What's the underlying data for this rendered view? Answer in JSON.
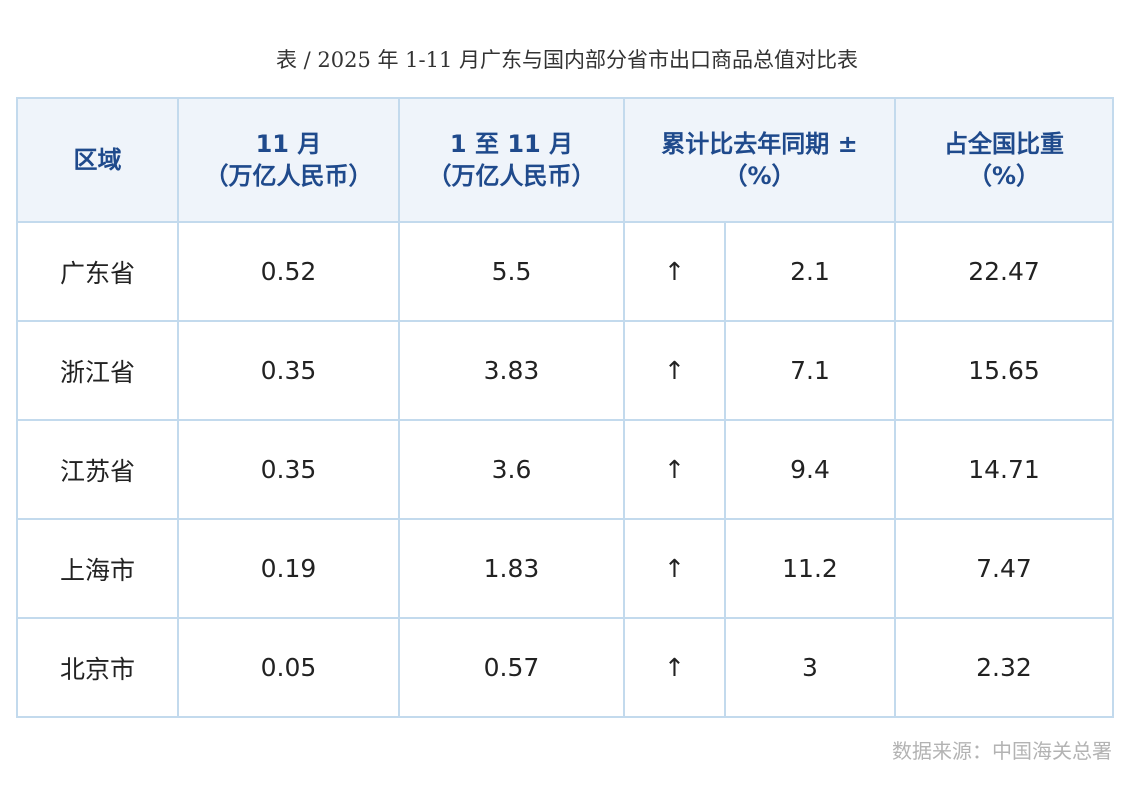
{
  "title": "表 / 2025 年 1-11 月广东与国内部分省市出口商品总值对比表",
  "headers": {
    "region": "区域",
    "nov_line1": "11 月",
    "nov_line2": "（万亿人民币）",
    "ytd_line1": "1 至 11 月",
    "ytd_line2": "（万亿人民币）",
    "yoy_line1": "累计比去年同期 ±",
    "yoy_line2": "（%）",
    "share_line1": "占全国比重",
    "share_line2": "（%）"
  },
  "trend_icon": "arrow-up-icon",
  "rows": [
    {
      "region": "广东省",
      "nov": "0.52",
      "ytd": "5.5",
      "arrow": "↑",
      "yoy": "2.1",
      "share": "22.47"
    },
    {
      "region": "浙江省",
      "nov": "0.35",
      "ytd": "3.83",
      "arrow": "↑",
      "yoy": "7.1",
      "share": "15.65"
    },
    {
      "region": "江苏省",
      "nov": "0.35",
      "ytd": "3.6",
      "arrow": "↑",
      "yoy": "9.4",
      "share": "14.71"
    },
    {
      "region": "上海市",
      "nov": "0.19",
      "ytd": "1.83",
      "arrow": "↑",
      "yoy": "11.2",
      "share": "7.47"
    },
    {
      "region": "北京市",
      "nov": "0.05",
      "ytd": "0.57",
      "arrow": "↑",
      "yoy": "3",
      "share": "2.32"
    }
  ],
  "source": "数据来源：中国海关总署",
  "colors": {
    "header_bg": "#eff4fa",
    "header_text": "#1f4a8c",
    "border": "#c3daed",
    "arrow": "#1f4a8c"
  }
}
